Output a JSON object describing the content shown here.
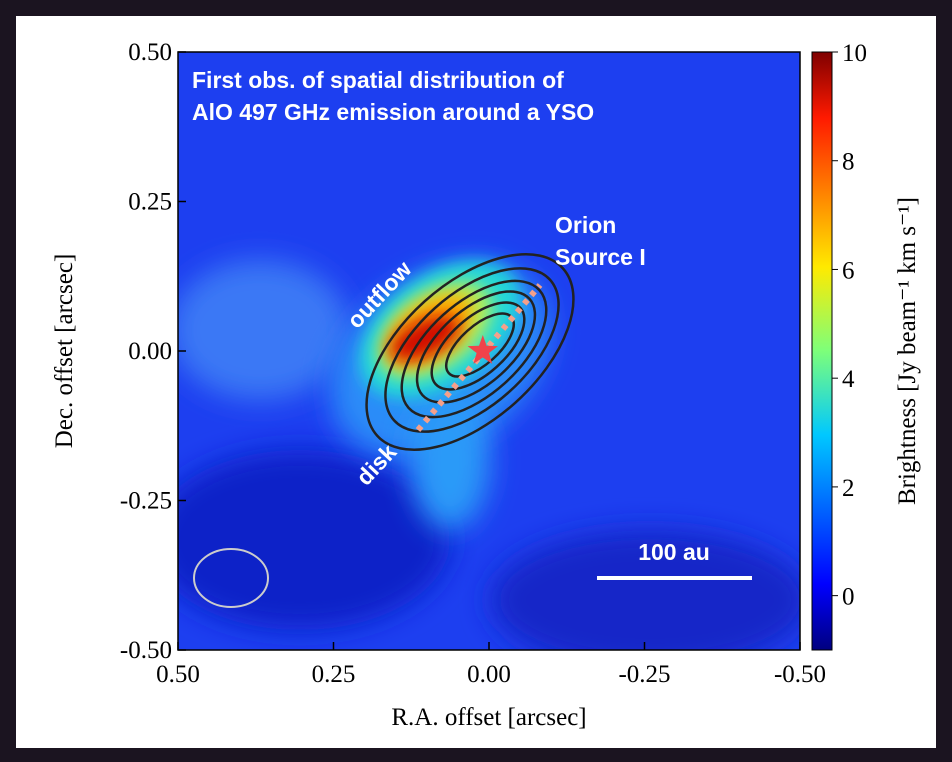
{
  "chart_data": {
    "type": "image",
    "annotations": [
      "First obs. of spatial distribution of",
      "AlO 497 GHz emission around a YSO",
      "outflow",
      "disk",
      "Orion",
      "Source I",
      "100 au"
    ],
    "xlabel": "R.A. offset [arcsec]",
    "ylabel": "Dec. offset [arcsec]",
    "colorbar_label": "Brightness [Jy beam⁻¹ km s⁻¹]",
    "xlim": [
      0.5,
      -0.5
    ],
    "xticks": [
      {
        "value": 0.5,
        "label": "0.50"
      },
      {
        "value": 0.25,
        "label": "0.25"
      },
      {
        "value": 0,
        "label": "0.00"
      },
      {
        "value": -0.25,
        "label": "-0.25"
      },
      {
        "value": -0.5,
        "label": "-0.50"
      }
    ],
    "ylim": [
      -0.5,
      0.5
    ],
    "yticks": [
      {
        "value": -0.5,
        "label": "-0.50"
      },
      {
        "value": -0.25,
        "label": "-0.25"
      },
      {
        "value": 0,
        "label": "0.00"
      },
      {
        "value": 0.25,
        "label": "0.25"
      },
      {
        "value": 0.5,
        "label": "0.50"
      }
    ],
    "clim": [
      -1,
      10
    ],
    "cticks": [
      0,
      2,
      4,
      6,
      8,
      10
    ],
    "source_position": {
      "x": 0.01,
      "y": 0.0,
      "color": "#f0434a"
    }
  }
}
